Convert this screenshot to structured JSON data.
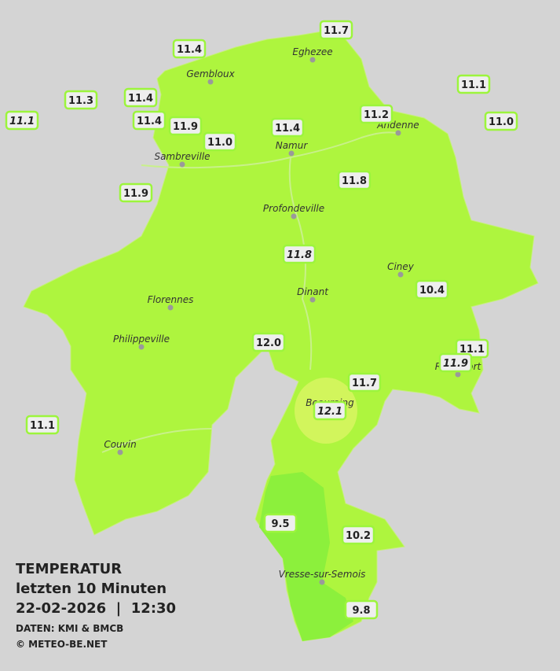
{
  "legend": {
    "title": "TEMPERATUR",
    "period": "letzten 10 Minuten",
    "datetime": "22-02-2026  |  12:30",
    "source": "DATEN: KMI & BMCB",
    "copyright": "© METEO-BE.NET"
  },
  "cities": [
    "Eghezee",
    "Gembloux",
    "Andenne",
    "Namur",
    "Sambreville",
    "Profondeville",
    "Ciney",
    "Dinant",
    "Florennes",
    "Philippeville",
    "Rochefort",
    "Beauraing",
    "Couvin",
    "Vresse-sur-Semois"
  ],
  "stations": [
    {
      "label": "11.7",
      "italic": false
    },
    {
      "label": "11.4",
      "italic": false
    },
    {
      "label": "11.1",
      "italic": false
    },
    {
      "label": "11.3",
      "italic": false
    },
    {
      "label": "11.4",
      "italic": false
    },
    {
      "label": "11.2",
      "italic": false
    },
    {
      "label": "11.1",
      "italic": true
    },
    {
      "label": "11.4",
      "italic": false
    },
    {
      "label": "11.9",
      "italic": false
    },
    {
      "label": "11.4",
      "italic": false
    },
    {
      "label": "11.0",
      "italic": false
    },
    {
      "label": "11.0",
      "italic": false
    },
    {
      "label": "11.9",
      "italic": false
    },
    {
      "label": "11.8",
      "italic": false
    },
    {
      "label": "11.8",
      "italic": true
    },
    {
      "label": "10.4",
      "italic": false
    },
    {
      "label": "12.0",
      "italic": false
    },
    {
      "label": "11.1",
      "italic": false
    },
    {
      "label": "11.9",
      "italic": true
    },
    {
      "label": "11.7",
      "italic": false
    },
    {
      "label": "12.1",
      "italic": true
    },
    {
      "label": "11.1",
      "italic": false
    },
    {
      "label": "9.5",
      "italic": false
    },
    {
      "label": "10.2",
      "italic": false
    },
    {
      "label": "9.8",
      "italic": false
    }
  ]
}
